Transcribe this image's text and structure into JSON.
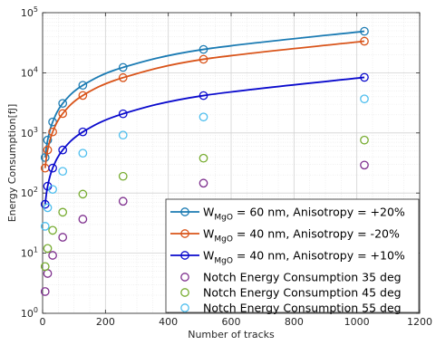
{
  "chart_data": {
    "type": "line",
    "xlabel": "Number of tracks",
    "ylabel": "Energy Consumption[fJ]",
    "xlim": [
      0,
      1200
    ],
    "ylim": [
      1,
      100000
    ],
    "y_scale": "log",
    "x_ticks": [
      0,
      200,
      400,
      600,
      800,
      1000,
      1200
    ],
    "y_ticks": [
      {
        "value": 1,
        "base": "10",
        "exp": "0"
      },
      {
        "value": 10,
        "base": "10",
        "exp": "1"
      },
      {
        "value": 100,
        "base": "10",
        "exp": "2"
      },
      {
        "value": 1000,
        "base": "10",
        "exp": "3"
      },
      {
        "value": 10000,
        "base": "10",
        "exp": "4"
      },
      {
        "value": 100000,
        "base": "10",
        "exp": "5"
      }
    ],
    "grid": true,
    "legend_position": "bottom-right",
    "series": [
      {
        "name_main": "W",
        "name_sub": "MgO",
        "name_rest": " = 60 nm, Anisotropy = +20%",
        "style": "line-marker",
        "color": "#1b7bb3",
        "x": [
          8,
          16,
          32,
          64,
          128,
          256,
          512,
          1024
        ],
        "y": [
          390,
          760,
          1520,
          3100,
          6200,
          12300,
          24500,
          49000
        ]
      },
      {
        "name_main": "W",
        "name_sub": "MgO",
        "name_rest": " = 40 nm, Anisotropy = -20%",
        "style": "line-marker",
        "color": "#d9541a",
        "x": [
          8,
          16,
          32,
          64,
          128,
          256,
          512,
          1024
        ],
        "y": [
          260,
          520,
          1040,
          2100,
          4200,
          8300,
          16800,
          33500
        ]
      },
      {
        "name_main": "W",
        "name_sub": "MgO",
        "name_rest": " = 40 nm, Anisotropy = +10%",
        "style": "line-marker",
        "color": "#0a0acd",
        "x": [
          8,
          16,
          32,
          64,
          128,
          256,
          512,
          1024
        ],
        "y": [
          65,
          130,
          260,
          520,
          1040,
          2080,
          4180,
          8400
        ]
      },
      {
        "name_main": "Notch Energy Consumption 35 deg",
        "name_sub": "",
        "name_rest": "",
        "style": "marker",
        "color": "#7e2f8e",
        "x": [
          8,
          16,
          32,
          64,
          128,
          256,
          512,
          1024
        ],
        "y": [
          2.3,
          4.6,
          9.2,
          18.4,
          36.8,
          73,
          146,
          292
        ]
      },
      {
        "name_main": "Notch Energy Consumption 45 deg",
        "name_sub": "",
        "name_rest": "",
        "style": "marker",
        "color": "#77ac30",
        "x": [
          8,
          16,
          32,
          64,
          128,
          256,
          512,
          1024
        ],
        "y": [
          6,
          12,
          24,
          48,
          96,
          190,
          380,
          760
        ]
      },
      {
        "name_main": "Notch Energy Consumption 55 deg",
        "name_sub": "",
        "name_rest": "",
        "style": "marker",
        "color": "#4dbeee",
        "x": [
          8,
          16,
          32,
          64,
          128,
          256,
          512,
          1024
        ],
        "y": [
          28,
          57,
          115,
          230,
          460,
          920,
          1840,
          3680
        ]
      }
    ]
  }
}
